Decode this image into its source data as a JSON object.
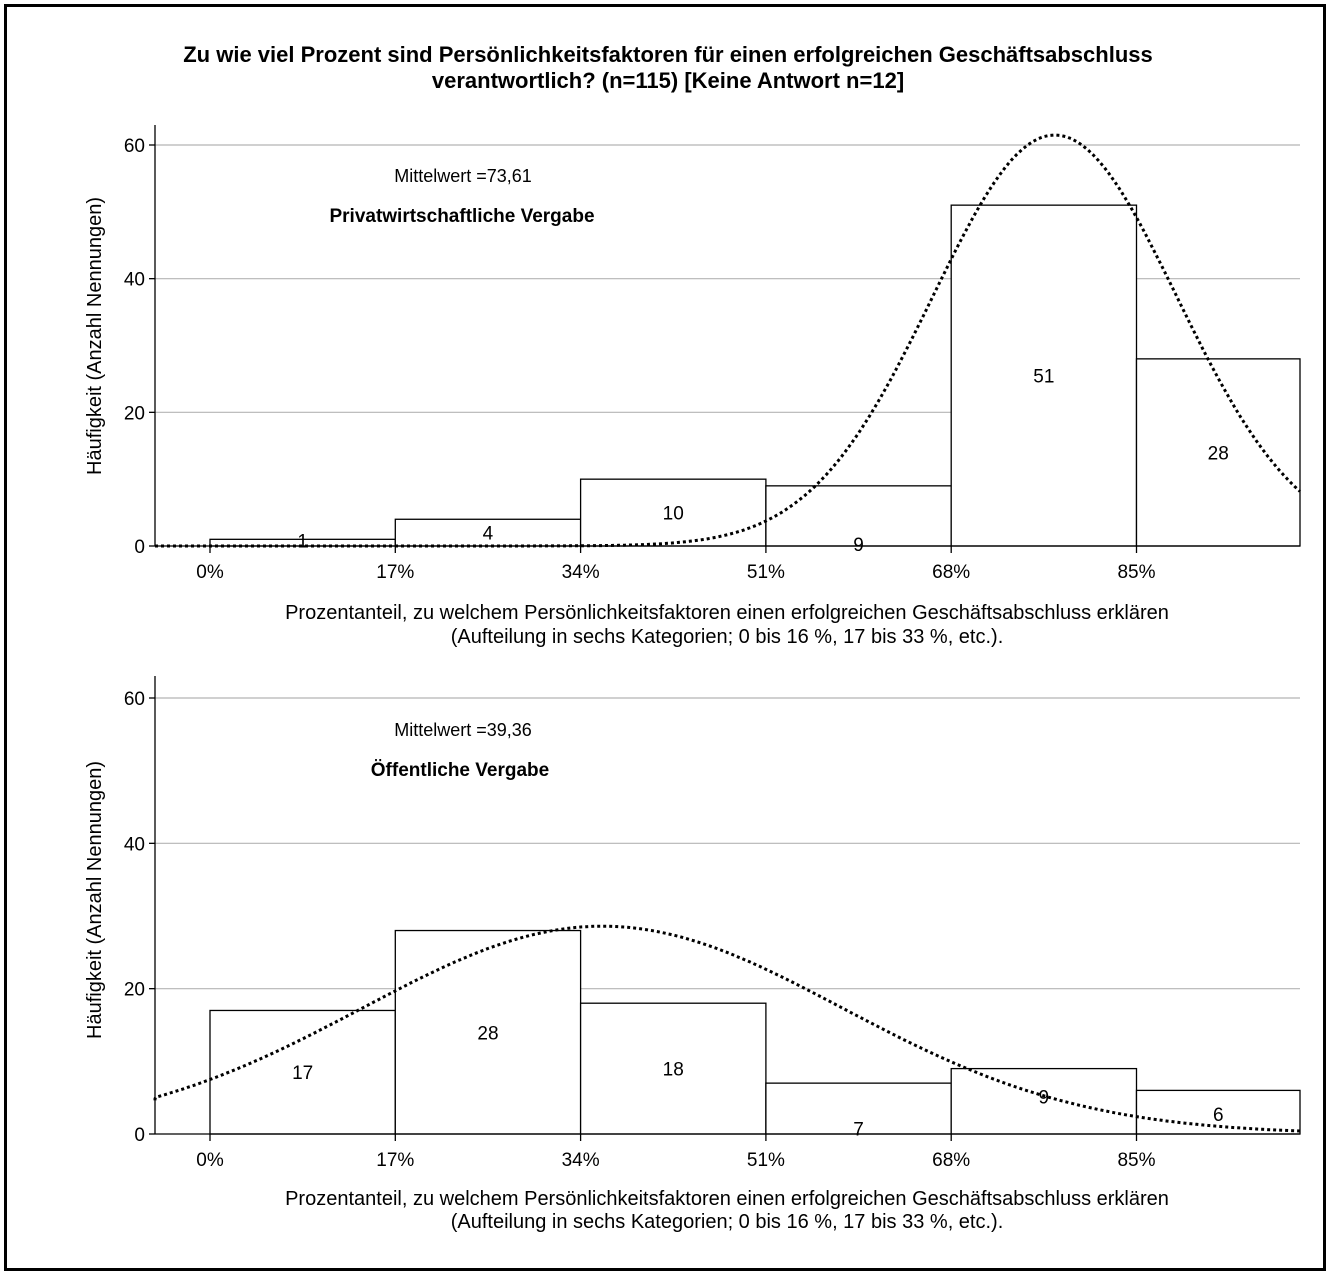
{
  "title_lines": [
    "Zu wie viel Prozent sind Persönlichkeitsfaktoren für einen erfolgreichen Geschäftsabschluss",
    "verantwortlich?  (n=115)  [Keine Antwort n=12]"
  ],
  "chart_data": [
    {
      "type": "bar",
      "panel_label": "Privatwirtschaftliche Vergabe",
      "mean_label": "Mittelwert =73,61",
      "ylabel": "Häufigkeit (Anzahl Nennungen)",
      "xlabel_lines": [
        "Prozentanteil, zu welchem Persönlichkeitsfaktoren einen erfolgreichen Geschäftsabschluss erklären",
        "(Aufteilung in sechs Kategorien; 0 bis 16 %, 17 bis 33 %, etc.)."
      ],
      "x_tick_labels": [
        "0%",
        "17%",
        "34%",
        "51%",
        "68%",
        "85%"
      ],
      "bin_edges": [
        0,
        17,
        34,
        51,
        68,
        85,
        100
      ],
      "values": [
        1,
        4,
        10,
        9,
        51,
        28
      ],
      "data_labels": [
        "1",
        "4",
        "10",
        "9",
        "51",
        "28"
      ],
      "xlim": [
        -6,
        100
      ],
      "y_ticks": [
        0,
        20,
        40,
        60
      ],
      "ylim": [
        0,
        63
      ],
      "grid": true,
      "normal_curve": {
        "mean": 77.5,
        "sd": 11.2,
        "peak": 61.5
      }
    },
    {
      "type": "bar",
      "panel_label": "Öffentliche Vergabe",
      "mean_label": "Mittelwert =39,36",
      "ylabel": "Häufigkeit (Anzahl Nennungen)",
      "xlabel_lines": [
        "Prozentanteil, zu welchem Persönlichkeitsfaktoren einen erfolgreichen Geschäftsabschluss erklären",
        "(Aufteilung in sechs Kategorien; 0 bis 16 %, 17 bis 33 %, etc.)."
      ],
      "x_tick_labels": [
        "0%",
        "17%",
        "34%",
        "51%",
        "68%",
        "85%"
      ],
      "bin_edges": [
        0,
        17,
        34,
        51,
        68,
        85,
        100
      ],
      "values": [
        17,
        28,
        18,
        7,
        9,
        6
      ],
      "data_labels": [
        "17",
        "28",
        "18",
        "7",
        "9",
        "6"
      ],
      "xlim": [
        -6,
        100
      ],
      "y_ticks": [
        0,
        20,
        40,
        60
      ],
      "ylim": [
        0,
        63
      ],
      "grid": true,
      "normal_curve": {
        "mean": 36,
        "sd": 22,
        "peak": 28.6
      }
    }
  ]
}
